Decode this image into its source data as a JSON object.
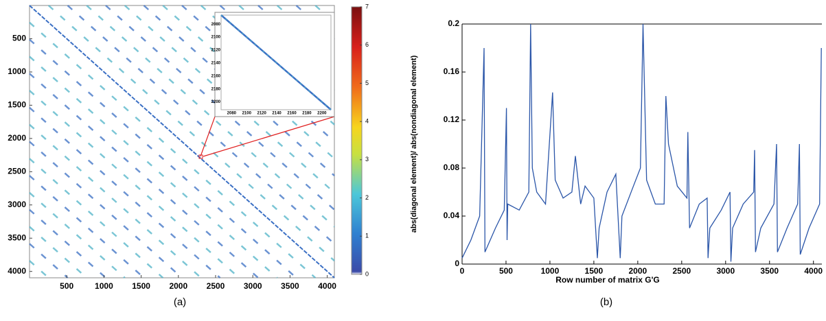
{
  "chart_data": [
    {
      "type": "spy",
      "caption": "(a)",
      "color": "#3a6fc4",
      "diag_color": "#4fb3c8",
      "xlim": [
        0,
        4096
      ],
      "ylim": [
        0,
        4096
      ],
      "y_reversed": true,
      "xticks": [
        500,
        1000,
        1500,
        2000,
        2500,
        3000,
        3500,
        4000
      ],
      "yticks": [
        500,
        1000,
        1500,
        2000,
        2500,
        3000,
        3500,
        4000
      ],
      "diagonal_offsets": [
        -3840,
        -3584,
        -3328,
        -3072,
        -2816,
        -2560,
        -2304,
        -2048,
        -1792,
        -1536,
        -1280,
        -1024,
        -768,
        -512,
        -256,
        0,
        256,
        512,
        768,
        1024,
        1280,
        1536,
        1792,
        2048,
        2304,
        2560,
        2816,
        3072,
        3328,
        3584,
        3840
      ],
      "colorbar": {
        "colormap": "jet",
        "lim": [
          0,
          7
        ],
        "ticks": [
          0,
          1,
          2,
          3,
          4,
          5,
          6,
          7
        ]
      },
      "inset": {
        "xlim": [
          2066,
          2212
        ],
        "ylim": [
          2066,
          2212
        ],
        "xticks": [
          2080,
          2100,
          2120,
          2140,
          2160,
          2180,
          2200
        ],
        "yticks": [
          2080,
          2100,
          2120,
          2140,
          2160,
          2180,
          2200
        ]
      }
    },
    {
      "type": "line",
      "caption": "(b)",
      "color": "#2a55a8",
      "y_label": "abs(diagonal element)/ abs(nondiagonal element)",
      "x_label": "Row number of matrix G'G",
      "xlim": [
        0,
        4096
      ],
      "ylim": [
        0,
        0.2
      ],
      "xticks": [
        0,
        500,
        1000,
        1500,
        2000,
        2500,
        3000,
        3500,
        4000
      ],
      "yticks": [
        0,
        0.04,
        0.08,
        0.12,
        0.16,
        0.2
      ],
      "x": [
        0,
        100,
        200,
        250,
        260,
        380,
        480,
        505,
        512,
        520,
        650,
        760,
        780,
        800,
        850,
        950,
        1030,
        1060,
        1150,
        1250,
        1290,
        1350,
        1400,
        1500,
        1540,
        1560,
        1650,
        1750,
        1800,
        1820,
        1950,
        2030,
        2060,
        2100,
        2200,
        2300,
        2320,
        2350,
        2450,
        2560,
        2570,
        2590,
        2700,
        2790,
        2800,
        2820,
        2950,
        3050,
        3060,
        3080,
        3200,
        3320,
        3330,
        3340,
        3400,
        3550,
        3580,
        3590,
        3700,
        3820,
        3840,
        3850,
        3950,
        4070,
        4090
      ],
      "values": [
        0.005,
        0.02,
        0.04,
        0.18,
        0.01,
        0.03,
        0.045,
        0.13,
        0.02,
        0.05,
        0.045,
        0.06,
        0.2,
        0.08,
        0.06,
        0.05,
        0.143,
        0.07,
        0.055,
        0.06,
        0.09,
        0.05,
        0.065,
        0.055,
        0.005,
        0.03,
        0.06,
        0.075,
        0.005,
        0.04,
        0.065,
        0.08,
        0.2,
        0.07,
        0.05,
        0.05,
        0.14,
        0.1,
        0.065,
        0.055,
        0.11,
        0.03,
        0.05,
        0.055,
        0.005,
        0.03,
        0.045,
        0.06,
        0.002,
        0.03,
        0.05,
        0.06,
        0.095,
        0.01,
        0.03,
        0.05,
        0.1,
        0.01,
        0.03,
        0.05,
        0.1,
        0.008,
        0.03,
        0.05,
        0.18
      ]
    }
  ]
}
